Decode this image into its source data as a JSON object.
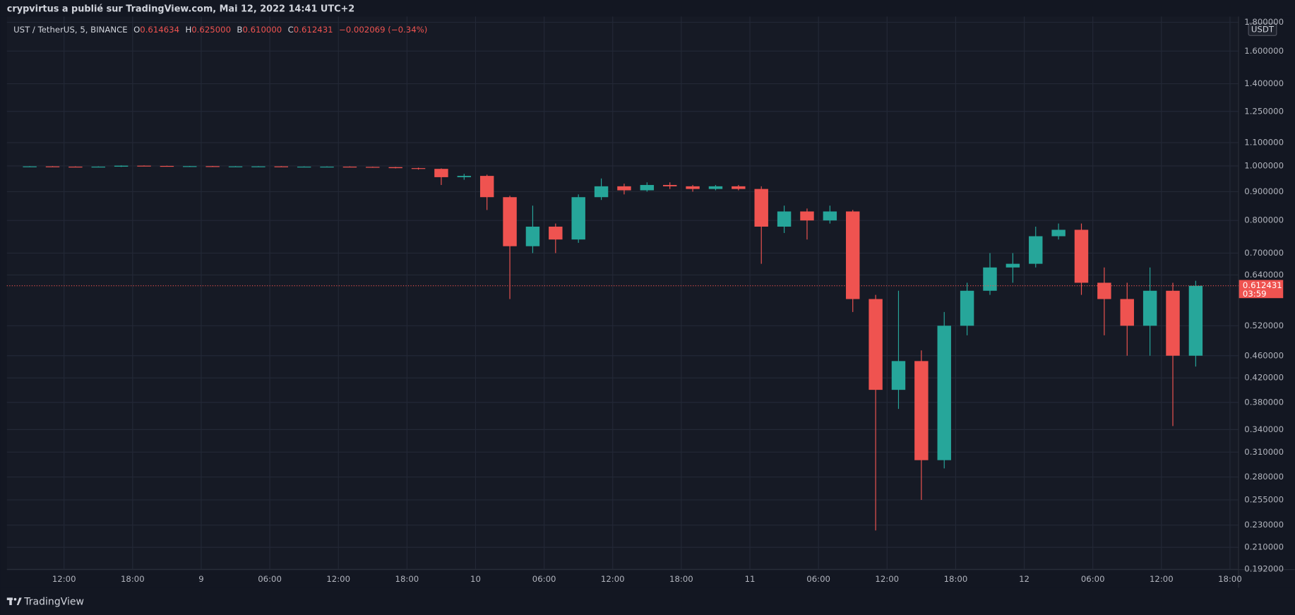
{
  "header": "crypvirtus a publié sur TradingView.com, Mai 12, 2022 14:41 UTC+2",
  "legend": {
    "symbol": "UST / TetherUS, 5, BINANCE",
    "o_label": "O",
    "open": "0.614634",
    "h_label": "H",
    "high": "0.625000",
    "b_label": "B",
    "low": "0.610000",
    "c_label": "C",
    "close": "0.612431",
    "change": "−0.002069 (−0.34%)"
  },
  "currency": "USDT",
  "countdown": "03:59",
  "footer": "TradingView",
  "chart_data": {
    "type": "candlestick",
    "log_scale": true,
    "grid": true,
    "up_color": "#26a69a",
    "down_color": "#ef5350",
    "last_price": 0.612431,
    "xlim": [
      "2022-05-08T07:00",
      "2022-05-12T18:45"
    ],
    "ylim": [
      0.1917,
      1.843
    ],
    "xticks": [
      {
        "value": "2022-05-08T12:00",
        "label": "12:00"
      },
      {
        "value": "2022-05-08T18:00",
        "label": "18:00"
      },
      {
        "value": "2022-05-09T00:00",
        "label": "9"
      },
      {
        "value": "2022-05-09T06:00",
        "label": "06:00"
      },
      {
        "value": "2022-05-09T12:00",
        "label": "12:00"
      },
      {
        "value": "2022-05-09T18:00",
        "label": "18:00"
      },
      {
        "value": "2022-05-10T00:00",
        "label": "10"
      },
      {
        "value": "2022-05-10T06:00",
        "label": "06:00"
      },
      {
        "value": "2022-05-10T12:00",
        "label": "12:00"
      },
      {
        "value": "2022-05-10T18:00",
        "label": "18:00"
      },
      {
        "value": "2022-05-11T00:00",
        "label": "11"
      },
      {
        "value": "2022-05-11T06:00",
        "label": "06:00"
      },
      {
        "value": "2022-05-11T12:00",
        "label": "12:00"
      },
      {
        "value": "2022-05-11T18:00",
        "label": "18:00"
      },
      {
        "value": "2022-05-12T00:00",
        "label": "12"
      },
      {
        "value": "2022-05-12T06:00",
        "label": "06:00"
      },
      {
        "value": "2022-05-12T12:00",
        "label": "12:00"
      },
      {
        "value": "2022-05-12T18:00",
        "label": "18:00"
      }
    ],
    "yticks": [
      {
        "value": 1.8,
        "label": "1.800000"
      },
      {
        "value": 1.6,
        "label": "1.600000"
      },
      {
        "value": 1.4,
        "label": "1.400000"
      },
      {
        "value": 1.25,
        "label": "1.250000"
      },
      {
        "value": 1.1,
        "label": "1.100000"
      },
      {
        "value": 1.0,
        "label": "1.000000"
      },
      {
        "value": 0.9,
        "label": "0.900000"
      },
      {
        "value": 0.8,
        "label": "0.800000"
      },
      {
        "value": 0.7,
        "label": "0.700000"
      },
      {
        "value": 0.64,
        "label": "0.640000"
      },
      {
        "value": 0.52,
        "label": "0.520000"
      },
      {
        "value": 0.46,
        "label": "0.460000"
      },
      {
        "value": 0.42,
        "label": "0.420000"
      },
      {
        "value": 0.38,
        "label": "0.380000"
      },
      {
        "value": 0.34,
        "label": "0.340000"
      },
      {
        "value": 0.31,
        "label": "0.310000"
      },
      {
        "value": 0.28,
        "label": "0.280000"
      },
      {
        "value": 0.255,
        "label": "0.255000"
      },
      {
        "value": 0.23,
        "label": "0.230000"
      },
      {
        "value": 0.21,
        "label": "0.210000"
      },
      {
        "value": 0.192,
        "label": "0.192000"
      }
    ],
    "x": [
      "2022-05-08T08:00",
      "2022-05-08T10:00",
      "2022-05-08T12:00",
      "2022-05-08T14:00",
      "2022-05-08T16:00",
      "2022-05-08T18:00",
      "2022-05-08T20:00",
      "2022-05-08T22:00",
      "2022-05-09T00:00",
      "2022-05-09T02:00",
      "2022-05-09T04:00",
      "2022-05-09T06:00",
      "2022-05-09T08:00",
      "2022-05-09T10:00",
      "2022-05-09T12:00",
      "2022-05-09T14:00",
      "2022-05-09T16:00",
      "2022-05-09T18:00",
      "2022-05-09T20:00",
      "2022-05-09T22:00",
      "2022-05-10T00:00",
      "2022-05-10T02:00",
      "2022-05-10T04:00",
      "2022-05-10T06:00",
      "2022-05-10T08:00",
      "2022-05-10T10:00",
      "2022-05-10T12:00",
      "2022-05-10T14:00",
      "2022-05-10T16:00",
      "2022-05-10T18:00",
      "2022-05-10T20:00",
      "2022-05-10T22:00",
      "2022-05-11T00:00",
      "2022-05-11T02:00",
      "2022-05-11T04:00",
      "2022-05-11T06:00",
      "2022-05-11T08:00",
      "2022-05-11T10:00",
      "2022-05-11T12:00",
      "2022-05-11T14:00",
      "2022-05-11T16:00",
      "2022-05-11T18:00",
      "2022-05-11T20:00",
      "2022-05-11T22:00",
      "2022-05-12T00:00",
      "2022-05-12T02:00",
      "2022-05-12T04:00",
      "2022-05-12T06:00",
      "2022-05-12T08:00",
      "2022-05-12T10:00",
      "2022-05-12T12:00",
      "2022-05-12T14:00"
    ],
    "open": [
      0.998,
      0.998,
      0.997,
      0.996,
      0.997,
      1.001,
      1.0,
      0.999,
      0.999,
      0.998,
      0.998,
      0.998,
      0.997,
      0.997,
      0.997,
      0.996,
      0.995,
      0.991,
      0.988,
      0.955,
      0.96,
      0.88,
      0.72,
      0.78,
      0.74,
      0.88,
      0.92,
      0.905,
      0.925,
      0.92,
      0.91,
      0.92,
      0.91,
      0.78,
      0.83,
      0.8,
      0.83,
      0.58,
      0.4,
      0.45,
      0.3,
      0.52,
      0.6,
      0.66,
      0.67,
      0.75,
      0.77,
      0.62,
      0.58,
      0.52,
      0.6,
      0.46
    ],
    "high": [
      0.999,
      0.999,
      0.998,
      0.998,
      1.002,
      1.002,
      1.001,
      1.0,
      1.0,
      0.999,
      0.999,
      0.999,
      0.998,
      0.998,
      0.998,
      0.997,
      0.996,
      0.993,
      0.99,
      0.968,
      0.965,
      0.885,
      0.85,
      0.79,
      0.89,
      0.95,
      0.93,
      0.935,
      0.935,
      0.925,
      0.925,
      0.925,
      0.92,
      0.85,
      0.84,
      0.85,
      0.835,
      0.59,
      0.6,
      0.47,
      0.55,
      0.62,
      0.7,
      0.7,
      0.78,
      0.79,
      0.79,
      0.66,
      0.62,
      0.66,
      0.62,
      0.625
    ],
    "low": [
      0.997,
      0.996,
      0.995,
      0.995,
      0.996,
      0.999,
      0.998,
      0.998,
      0.997,
      0.997,
      0.997,
      0.997,
      0.996,
      0.996,
      0.995,
      0.994,
      0.99,
      0.985,
      0.925,
      0.945,
      0.835,
      0.58,
      0.7,
      0.7,
      0.73,
      0.87,
      0.89,
      0.9,
      0.91,
      0.9,
      0.905,
      0.905,
      0.67,
      0.76,
      0.74,
      0.79,
      0.55,
      0.225,
      0.37,
      0.255,
      0.29,
      0.5,
      0.59,
      0.62,
      0.66,
      0.74,
      0.59,
      0.5,
      0.46,
      0.46,
      0.345,
      0.44
    ],
    "close": [
      0.998,
      0.997,
      0.996,
      0.997,
      1.001,
      1.0,
      0.999,
      0.999,
      0.998,
      0.998,
      0.998,
      0.997,
      0.997,
      0.997,
      0.996,
      0.995,
      0.991,
      0.988,
      0.955,
      0.96,
      0.88,
      0.72,
      0.78,
      0.74,
      0.88,
      0.92,
      0.905,
      0.925,
      0.92,
      0.91,
      0.92,
      0.91,
      0.78,
      0.83,
      0.8,
      0.83,
      0.58,
      0.4,
      0.45,
      0.3,
      0.52,
      0.6,
      0.66,
      0.67,
      0.75,
      0.77,
      0.62,
      0.58,
      0.52,
      0.6,
      0.46,
      0.612431
    ]
  }
}
